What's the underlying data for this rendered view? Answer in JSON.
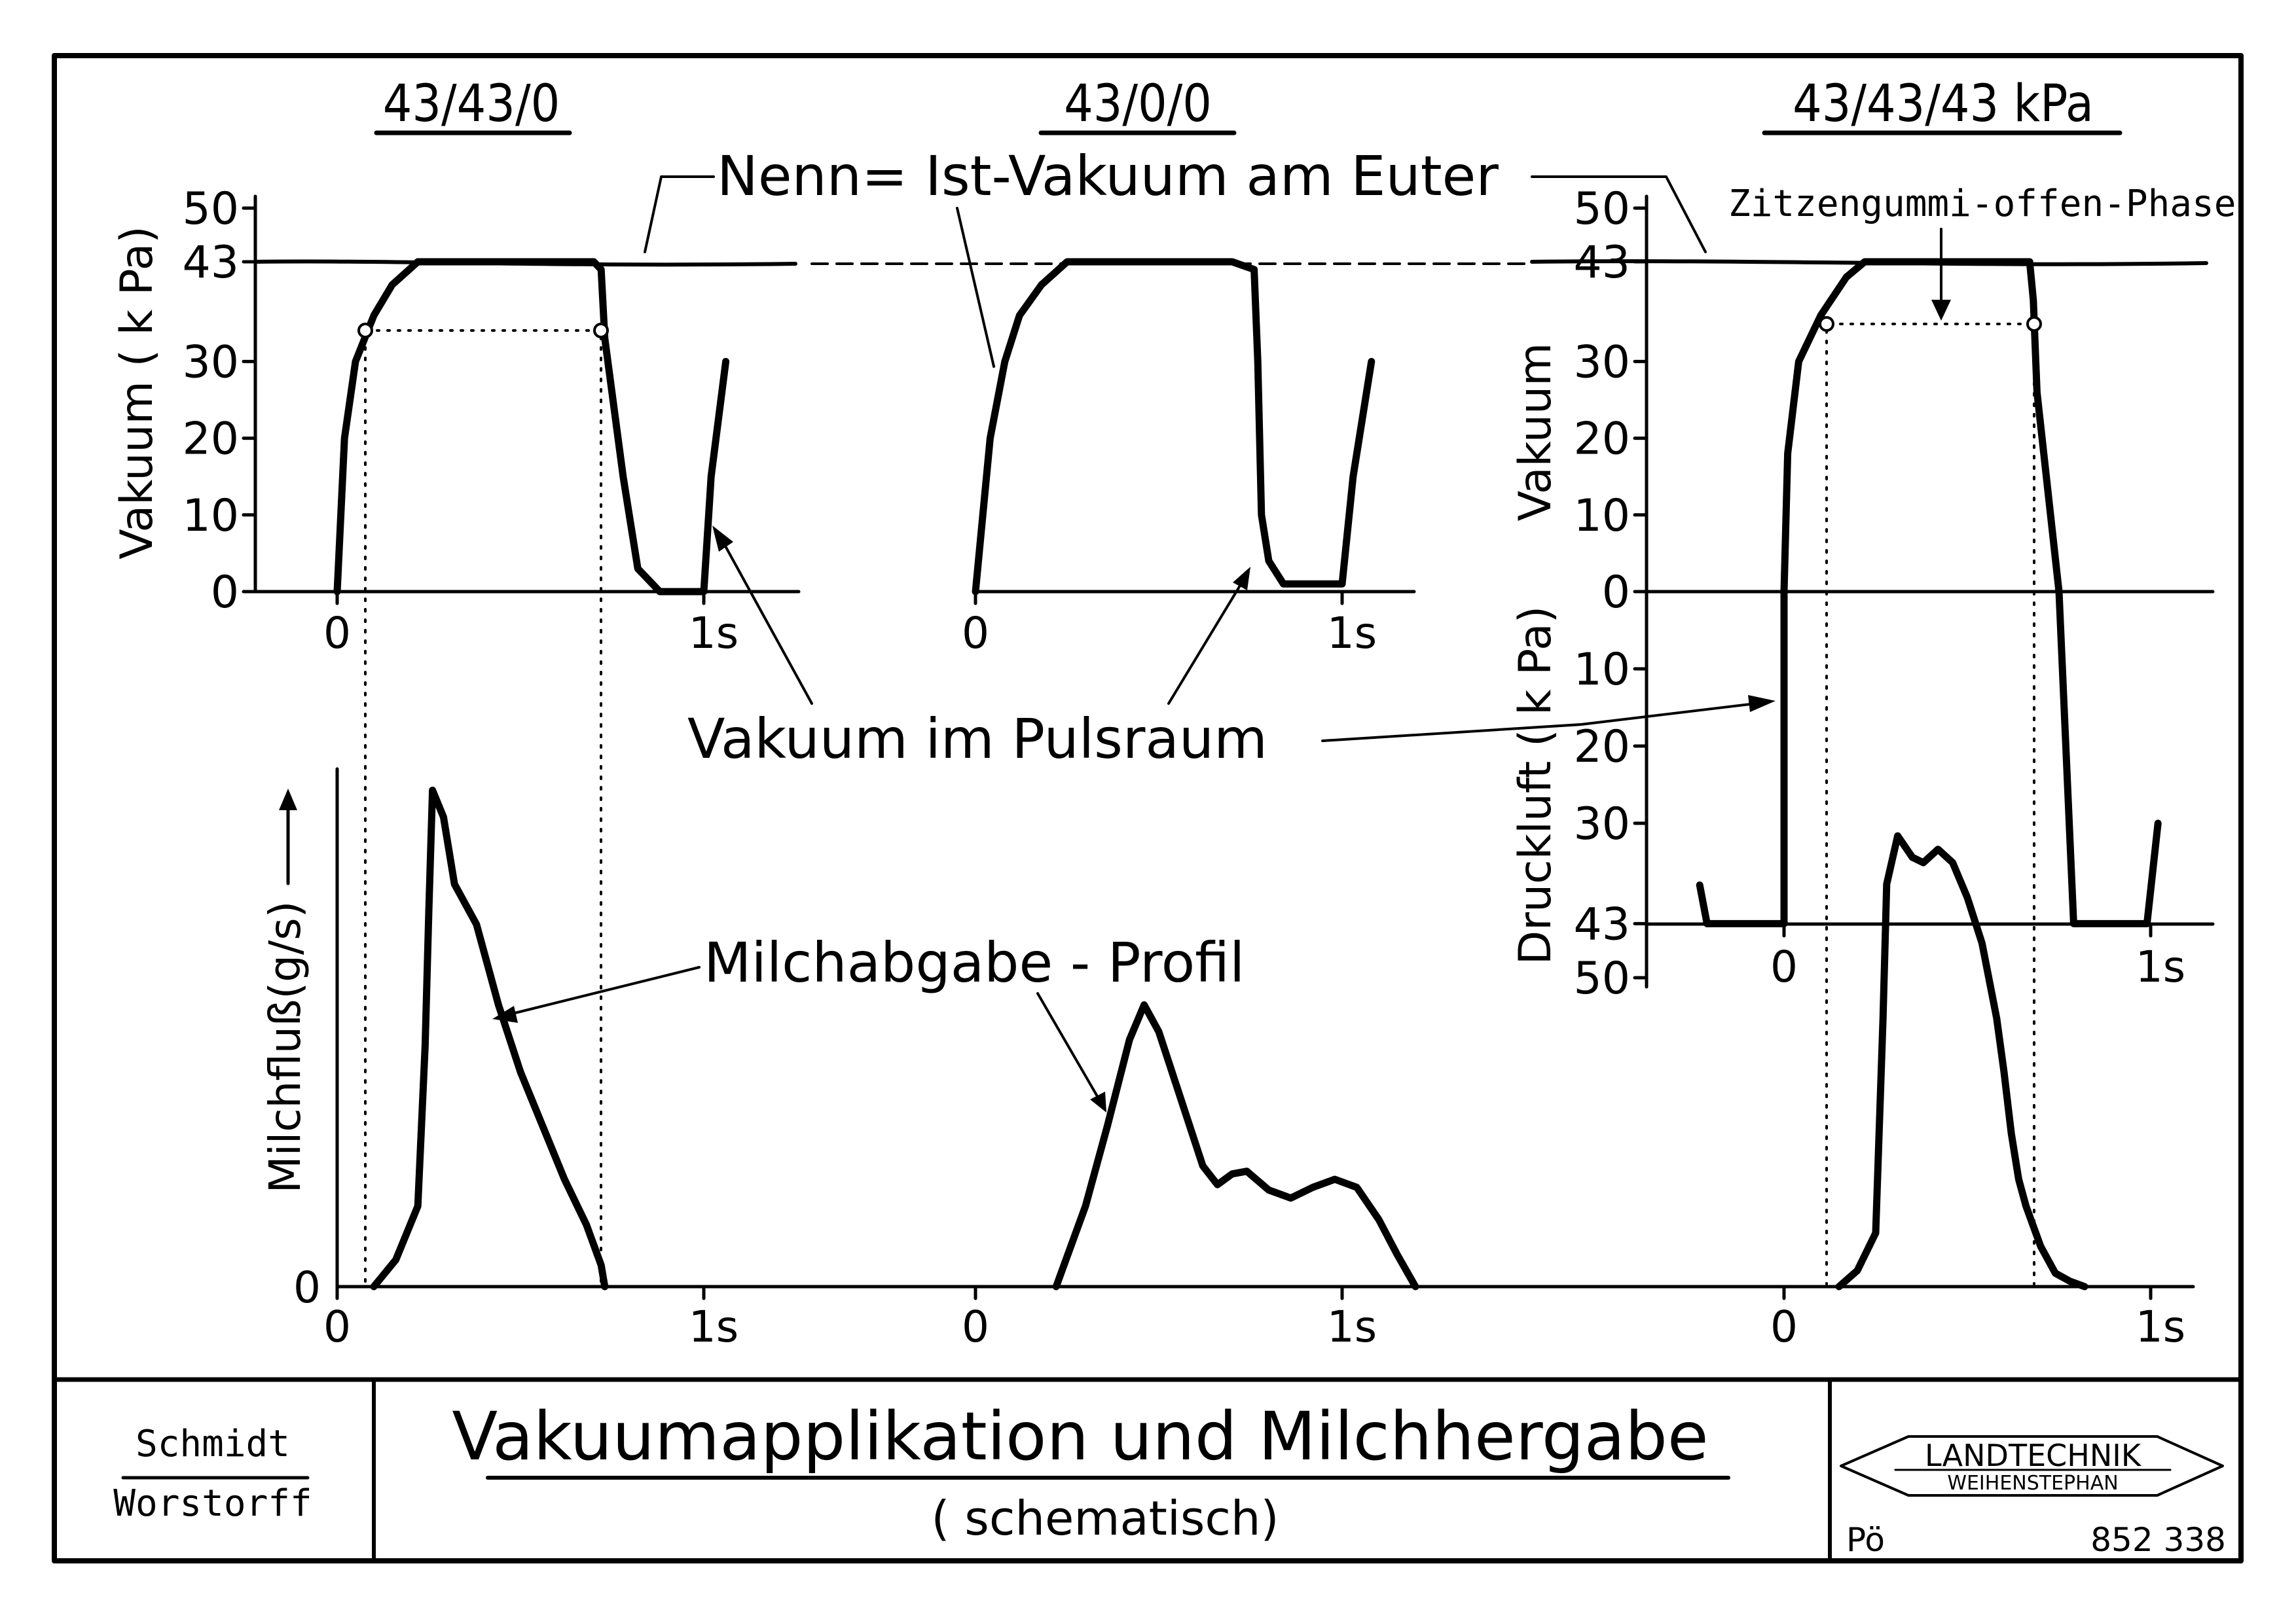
{
  "chart_data": [
    {
      "type": "line",
      "title": "43/43/0",
      "ylabel": "Vakuum ( k Pa)",
      "ylim": [
        0,
        50
      ],
      "yticks": [
        "0",
        "10",
        "20",
        "30",
        "43",
        "50"
      ],
      "xticks": [
        "0",
        "1s"
      ],
      "series": [
        {
          "x": [
            0.0,
            0.02,
            0.05,
            0.1,
            0.15,
            0.22,
            0.3,
            0.4,
            0.5,
            0.6,
            0.7,
            0.72,
            0.73,
            0.78,
            0.82,
            0.88,
            0.96,
            1.0,
            1.02,
            1.06
          ],
          "y": [
            0,
            20,
            30,
            36,
            40,
            43,
            43,
            43,
            43,
            43,
            43,
            42,
            33,
            15,
            3,
            0,
            0,
            0,
            15,
            30
          ]
        }
      ]
    },
    {
      "type": "line",
      "title": "43/0/0",
      "xticks": [
        "0",
        "1s"
      ],
      "series": [
        {
          "x": [
            0.0,
            0.04,
            0.08,
            0.12,
            0.18,
            0.25,
            0.3,
            0.4,
            0.5,
            0.6,
            0.7,
            0.76,
            0.77,
            0.78,
            0.8,
            0.84,
            0.9,
            0.96,
            1.0,
            1.03,
            1.08
          ],
          "y": [
            0,
            20,
            30,
            36,
            40,
            43,
            43,
            43,
            43,
            43,
            43,
            42,
            30,
            10,
            4,
            1,
            1,
            1,
            1,
            15,
            30
          ]
        }
      ]
    },
    {
      "type": "line",
      "title": "43/43/43 kPa",
      "ylabel": "Vakuum",
      "ylabel2": "Druckluft ( k Pa)",
      "yticks": [
        "0",
        "10",
        "20",
        "30",
        "43",
        "50"
      ],
      "yticks2": [
        "0",
        "10",
        "20",
        "30",
        "43",
        "50"
      ],
      "xticks": [
        "0",
        "1s"
      ],
      "series": [
        {
          "x": [
            -0.23,
            -0.21,
            -0.18,
            0.0,
            0.0,
            0.01,
            0.04,
            0.1,
            0.17,
            0.22,
            0.3,
            0.4,
            0.5,
            0.6,
            0.67,
            0.68,
            0.69,
            0.75,
            0.79,
            0.85,
            0.95,
            0.99,
            1.02
          ],
          "y": [
            -38,
            -43,
            -43,
            -43,
            0,
            18,
            30,
            36,
            41,
            43,
            43,
            43,
            43,
            43,
            43,
            38,
            26,
            0,
            -43,
            -43,
            -43,
            -43,
            -30
          ]
        }
      ]
    },
    {
      "type": "line",
      "ylabel": "Milchfluß(g/s)",
      "yticks": [
        "0"
      ],
      "xticks": [
        "0",
        "1s"
      ],
      "series": [
        {
          "x": [
            0.1,
            0.16,
            0.22,
            0.24,
            0.25,
            0.26,
            0.29,
            0.32,
            0.38,
            0.44,
            0.5,
            0.56,
            0.62,
            0.68,
            0.72,
            0.73
          ],
          "y": [
            0,
            10,
            30,
            90,
            140,
            185,
            175,
            150,
            135,
            105,
            80,
            60,
            40,
            23,
            8,
            0
          ]
        },
        {
          "x": [
            0.22,
            0.3,
            0.36,
            0.42,
            0.46,
            0.5,
            0.56,
            0.62,
            0.66,
            0.7,
            0.74,
            0.8,
            0.86,
            0.92,
            0.98,
            1.04,
            1.1,
            1.15,
            1.2
          ],
          "y": [
            0,
            30,
            60,
            92,
            105,
            95,
            70,
            45,
            38,
            42,
            43,
            36,
            33,
            37,
            40,
            37,
            25,
            12,
            0
          ]
        },
        {
          "x": [
            0.15,
            0.2,
            0.25,
            0.27,
            0.28,
            0.31,
            0.35,
            0.38,
            0.42,
            0.46,
            0.5,
            0.54,
            0.58,
            0.6,
            0.62,
            0.64,
            0.66,
            0.7,
            0.74,
            0.78,
            0.82
          ],
          "y": [
            0,
            6,
            20,
            100,
            150,
            168,
            160,
            158,
            163,
            158,
            145,
            128,
            100,
            80,
            57,
            40,
            30,
            15,
            5,
            2,
            0
          ]
        }
      ]
    }
  ],
  "labels": {
    "nenn_ist": "Nenn= Ist-Vakuum am Euter",
    "zitzengummi": "Zitzengummi-offen-Phase",
    "pulsraum": "Vakuum im Pulsraum",
    "milchabgabe": "Milchabgabe - Profil",
    "milchfluss_ylabel": "Milchfluß(g/s)"
  },
  "footer": {
    "author1": "Schmidt",
    "author2": "Worstorff",
    "title": "Vakuumapplikation und Milchhergabe",
    "subtitle": "( schematisch)",
    "logo_line1": "LANDTECHNIK",
    "logo_line2": "WEIHENSTEPHAN",
    "initials": "Pö",
    "code": "852 338"
  }
}
